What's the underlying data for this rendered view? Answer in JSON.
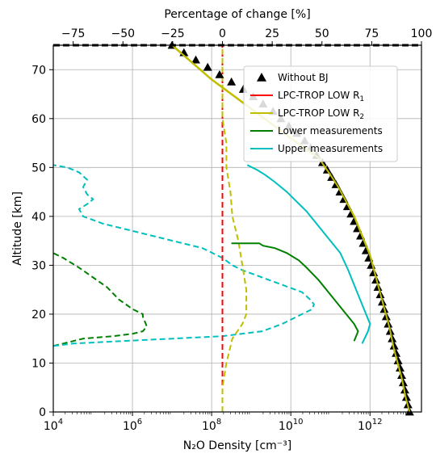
{
  "chart_data": {
    "type": "line",
    "xlabel": "N₂O Density [cm⁻³]",
    "x_tick_labels": [
      {
        "base": "10",
        "exp": "4",
        "value": 4
      },
      {
        "base": "10",
        "exp": "6",
        "value": 6
      },
      {
        "base": "10",
        "exp": "8",
        "value": 8
      },
      {
        "base": "10",
        "exp": "10",
        "value": 10
      },
      {
        "base": "10",
        "exp": "12",
        "value": 12
      }
    ],
    "x_scale": "log",
    "xlim_log10": [
      4,
      13.3
    ],
    "ylabel": "Altitude [km]",
    "ylim": [
      0,
      75
    ],
    "y_ticks": [
      0,
      10,
      20,
      30,
      40,
      50,
      60,
      70
    ],
    "top_xlabel": "Percentage of change [%]",
    "top_xlim": [
      -85,
      100
    ],
    "top_x_ticks": [
      -75,
      -50,
      -25,
      0,
      25,
      50,
      75,
      100
    ],
    "top_x_tick_labels": [
      "−75",
      "−50",
      "−25",
      "0",
      "25",
      "50",
      "75",
      "100"
    ],
    "grid": true,
    "legend_position": "upper-right",
    "colors": {
      "without_bj": "#000000",
      "r1": "#ff0000",
      "r2": "#bfbf00",
      "lower": "#008000",
      "upper": "#00bfbf"
    },
    "series": [
      {
        "name": "Without BJ",
        "style": "triangle-markers",
        "points": [
          [
            7.0,
            75
          ],
          [
            7.3,
            73.5
          ],
          [
            7.6,
            72
          ],
          [
            7.9,
            70.5
          ],
          [
            8.2,
            69
          ],
          [
            8.5,
            67.5
          ],
          [
            8.8,
            66
          ],
          [
            9.05,
            64.5
          ],
          [
            9.3,
            63
          ],
          [
            9.55,
            61.5
          ],
          [
            9.75,
            60
          ],
          [
            9.95,
            58.5
          ],
          [
            10.15,
            57
          ],
          [
            10.35,
            55.5
          ],
          [
            10.5,
            54
          ],
          [
            10.65,
            52.5
          ],
          [
            10.8,
            51
          ],
          [
            10.92,
            49.5
          ],
          [
            11.03,
            48
          ],
          [
            11.14,
            46.5
          ],
          [
            11.24,
            45
          ],
          [
            11.34,
            43.5
          ],
          [
            11.43,
            42
          ],
          [
            11.52,
            40.5
          ],
          [
            11.6,
            39
          ],
          [
            11.68,
            37.5
          ],
          [
            11.76,
            36
          ],
          [
            11.83,
            34.5
          ],
          [
            11.9,
            33
          ],
          [
            11.97,
            31.5
          ],
          [
            12.03,
            30
          ],
          [
            12.09,
            28.5
          ],
          [
            12.15,
            27
          ],
          [
            12.2,
            25.5
          ],
          [
            12.26,
            24
          ],
          [
            12.31,
            22.5
          ],
          [
            12.36,
            21
          ],
          [
            12.41,
            19.5
          ],
          [
            12.46,
            18
          ],
          [
            12.51,
            16.5
          ],
          [
            12.56,
            15
          ],
          [
            12.61,
            13.5
          ],
          [
            12.66,
            12
          ],
          [
            12.71,
            10.5
          ],
          [
            12.76,
            9
          ],
          [
            12.8,
            7.5
          ],
          [
            12.84,
            6
          ],
          [
            12.88,
            4.5
          ],
          [
            12.92,
            3
          ],
          [
            12.96,
            1.5
          ],
          [
            13.0,
            0
          ]
        ]
      },
      {
        "name": "LPC-TROP LOW R",
        "name_sub": "1",
        "points": [
          [
            7.0,
            75
          ],
          [
            8.0,
            68
          ],
          [
            9.0,
            62
          ],
          [
            10.0,
            56
          ],
          [
            10.7,
            52
          ],
          [
            11.0,
            48.5
          ],
          [
            11.2,
            46
          ],
          [
            11.4,
            43
          ],
          [
            11.6,
            40
          ],
          [
            11.8,
            36
          ],
          [
            12.0,
            32
          ],
          [
            12.1,
            29
          ],
          [
            12.2,
            26
          ],
          [
            12.3,
            23
          ],
          [
            12.4,
            20
          ],
          [
            12.5,
            17
          ],
          [
            12.6,
            13
          ],
          [
            12.7,
            10
          ],
          [
            12.8,
            7
          ],
          [
            12.9,
            3
          ],
          [
            13.0,
            0
          ]
        ]
      },
      {
        "name": "LPC-TROP LOW R",
        "name_sub": "2",
        "points": [
          [
            7.0,
            75
          ],
          [
            8.0,
            68
          ],
          [
            9.0,
            62
          ],
          [
            10.0,
            56
          ],
          [
            10.7,
            52
          ],
          [
            11.0,
            48.5
          ],
          [
            11.2,
            46
          ],
          [
            11.4,
            43
          ],
          [
            11.6,
            40
          ],
          [
            11.8,
            36
          ],
          [
            12.0,
            32
          ],
          [
            12.1,
            29
          ],
          [
            12.2,
            26
          ],
          [
            12.3,
            23
          ],
          [
            12.4,
            20
          ],
          [
            12.5,
            17
          ],
          [
            12.6,
            13
          ],
          [
            12.7,
            10
          ],
          [
            12.8,
            7
          ],
          [
            12.9,
            3
          ],
          [
            13.0,
            0
          ]
        ]
      },
      {
        "name": "Lower measurements",
        "points": [
          [
            11.6,
            14.5
          ],
          [
            11.7,
            16.5
          ],
          [
            11.6,
            18
          ],
          [
            11.3,
            21
          ],
          [
            11.0,
            24
          ],
          [
            10.7,
            27
          ],
          [
            10.4,
            29.5
          ],
          [
            10.2,
            31
          ],
          [
            9.9,
            32.5
          ],
          [
            9.6,
            33.5
          ],
          [
            9.3,
            34
          ],
          [
            9.2,
            34.5
          ],
          [
            8.5,
            34.5
          ]
        ]
      },
      {
        "name": "Upper measurements",
        "points": [
          [
            11.8,
            14
          ],
          [
            11.95,
            16.5
          ],
          [
            12.0,
            18
          ],
          [
            11.85,
            21
          ],
          [
            11.65,
            25
          ],
          [
            11.45,
            29
          ],
          [
            11.25,
            32.5
          ],
          [
            11.0,
            35
          ],
          [
            10.8,
            37
          ],
          [
            10.6,
            39
          ],
          [
            10.4,
            41
          ],
          [
            10.15,
            43
          ],
          [
            9.9,
            45
          ],
          [
            9.6,
            47
          ],
          [
            9.35,
            48.5
          ],
          [
            9.15,
            49.5
          ],
          [
            8.9,
            50.5
          ]
        ]
      }
    ],
    "dashed_series": [
      {
        "role": "lower-percent",
        "color_key": "lower",
        "points": [
          [
            -85,
            13.5
          ],
          [
            -80,
            14
          ],
          [
            -70,
            15
          ],
          [
            -55,
            15.5
          ],
          [
            -45,
            16
          ],
          [
            -40,
            16.5
          ],
          [
            -38,
            17.5
          ],
          [
            -39,
            18.5
          ],
          [
            -40,
            19.5
          ],
          [
            -40,
            20
          ],
          [
            -45,
            21
          ],
          [
            -52,
            23
          ],
          [
            -58,
            25.5
          ],
          [
            -65,
            27.5
          ],
          [
            -72,
            29.5
          ],
          [
            -80,
            31.5
          ],
          [
            -85,
            32.5
          ]
        ]
      },
      {
        "role": "upper-percent",
        "color_key": "upper",
        "points": [
          [
            -85,
            13.5
          ],
          [
            -75,
            14
          ],
          [
            -50,
            14.5
          ],
          [
            -25,
            15
          ],
          [
            0,
            15.5
          ],
          [
            10,
            16
          ],
          [
            20,
            16.5
          ],
          [
            30,
            18
          ],
          [
            40,
            20
          ],
          [
            45,
            21
          ],
          [
            46,
            22
          ],
          [
            44,
            23
          ],
          [
            40,
            24.5
          ],
          [
            30,
            26
          ],
          [
            20,
            27.5
          ],
          [
            10,
            29
          ],
          [
            5,
            30
          ],
          [
            0,
            31.5
          ],
          [
            -10,
            33.5
          ],
          [
            -25,
            35
          ],
          [
            -45,
            37
          ],
          [
            -60,
            38.5
          ],
          [
            -70,
            40
          ],
          [
            -72,
            41.5
          ],
          [
            -68,
            42.5
          ],
          [
            -65,
            43.5
          ],
          [
            -68,
            44.5
          ],
          [
            -70,
            46
          ],
          [
            -68,
            47.5
          ],
          [
            -72,
            49
          ],
          [
            -78,
            50
          ],
          [
            -85,
            50.5
          ]
        ]
      },
      {
        "role": "r1-percent",
        "color_key": "r1",
        "points": [
          [
            0,
            0
          ],
          [
            0,
            75
          ]
        ]
      },
      {
        "role": "r2-percent",
        "color_key": "r2",
        "points": [
          [
            0,
            0
          ],
          [
            0,
            5
          ],
          [
            2,
            10
          ],
          [
            5,
            15
          ],
          [
            10,
            18
          ],
          [
            12,
            20
          ],
          [
            12,
            25
          ],
          [
            10,
            30
          ],
          [
            8,
            35
          ],
          [
            5,
            40
          ],
          [
            4,
            45
          ],
          [
            2,
            50
          ],
          [
            2,
            55
          ],
          [
            0,
            60
          ],
          [
            0,
            75
          ]
        ]
      }
    ]
  }
}
